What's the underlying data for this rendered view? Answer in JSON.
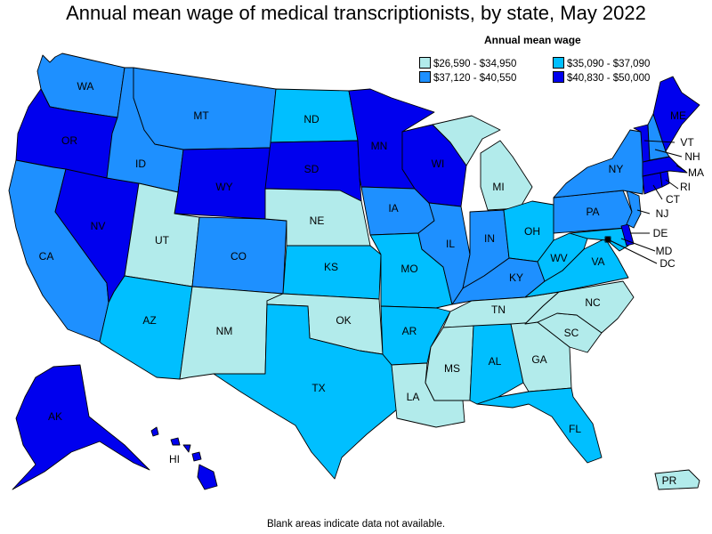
{
  "title": "Annual mean wage of medical transcriptionists, by state, May 2022",
  "legend": {
    "title": "Annual mean wage",
    "items": [
      {
        "label": "$26,590 - $34,950",
        "color": "#b2ebeb"
      },
      {
        "label": "$35,090 - $37,090",
        "color": "#00bfff"
      },
      {
        "label": "$37,120 - $40,550",
        "color": "#1e90ff"
      },
      {
        "label": "$40,830 - $50,000",
        "color": "#0000ee"
      }
    ]
  },
  "footer": "Blank areas indicate data not available.",
  "states": {
    "WA": "$37,120 - $40,550",
    "OR": "$40,830 - $50,000",
    "CA": "$37,120 - $40,550",
    "NV": "$40,830 - $50,000",
    "ID": "$37,120 - $40,550",
    "MT": "$37,120 - $40,550",
    "WY": "$40,830 - $50,000",
    "UT": "$26,590 - $34,950",
    "AZ": "$35,090 - $37,090",
    "CO": "$37,120 - $40,550",
    "NM": "$26,590 - $34,950",
    "ND": "$35,090 - $37,090",
    "SD": "$40,830 - $50,000",
    "NE": "$26,590 - $34,950",
    "KS": "$35,090 - $37,090",
    "OK": "$26,590 - $34,950",
    "TX": "$35,090 - $37,090",
    "MN": "$40,830 - $50,000",
    "IA": "$37,120 - $40,550",
    "MO": "$35,090 - $37,090",
    "AR": "$35,090 - $37,090",
    "LA": "$26,590 - $34,950",
    "WI": "$40,830 - $50,000",
    "IL": "$37,120 - $40,550",
    "MI": "$26,590 - $34,950",
    "IN": "$37,120 - $40,550",
    "OH": "$35,090 - $37,090",
    "KY": "$37,120 - $40,550",
    "TN": "$26,590 - $34,950",
    "MS": "$26,590 - $34,950",
    "AL": "$35,090 - $37,090",
    "GA": "$26,590 - $34,950",
    "FL": "$35,090 - $37,090",
    "SC": "$26,590 - $34,950",
    "NC": "$26,590 - $34,950",
    "VA": "$35,090 - $37,090",
    "WV": "$35,090 - $37,090",
    "PA": "$37,120 - $40,550",
    "NY": "$37,120 - $40,550",
    "VT": "$40,830 - $50,000",
    "NH": "$37,120 - $40,550",
    "ME": "$40,830 - $50,000",
    "MA": "$40,830 - $50,000",
    "RI": "$40,830 - $50,000",
    "CT": "$40,830 - $50,000",
    "NJ": "$37,120 - $40,550",
    "DE": "$40,830 - $50,000",
    "MD": "$35,090 - $37,090",
    "DC": "$35,090 - $37,090",
    "AK": "$40,830 - $50,000",
    "HI": "$40,830 - $50,000",
    "PR": "$26,590 - $34,950"
  }
}
